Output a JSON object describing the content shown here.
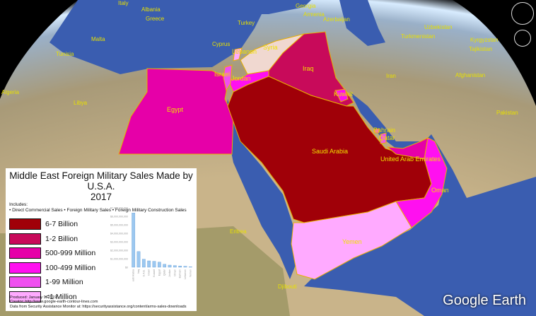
{
  "legend": {
    "title_line1": "Middle East Foreign Military Sales Made by U.S.A.",
    "title_line2": "2017",
    "includes_label": "Includes:",
    "includes_items": "• Direct Commercial Sales • Foreign Military Sales • Foreign Military Construction Sales",
    "classes": [
      {
        "label": "6-7 Billion",
        "color": "#a00008"
      },
      {
        "label": "1-2 Billion",
        "color": "#c80a5a"
      },
      {
        "label": "500-999 Million",
        "color": "#e600a8"
      },
      {
        "label": "100-499 Million",
        "color": "#ff10f0"
      },
      {
        "label": "1-99 Million",
        "color": "#f050f0"
      },
      {
        "label": "<1 Million",
        "color": "#ffaaff"
      }
    ],
    "produced": "Produced: January 9, 2019",
    "creator": "Creator: http://www.google-earth-contour-lines.com",
    "source": "Data from Security Assistance Monitor at: https://securityassistance.org/content/arms-sales-downloads"
  },
  "chart_data": {
    "type": "bar",
    "categories": [
      "Saudi Arabia",
      "Iraq",
      "U.A.E.",
      "Israel",
      "Kuwait",
      "Egypt",
      "Qatar",
      "Jordan",
      "Oman",
      "Bahrain",
      "Lebanon",
      "Yemen"
    ],
    "values": [
      6400000000,
      1850000000,
      950000000,
      750000000,
      700000000,
      600000000,
      350000000,
      250000000,
      200000000,
      150000000,
      120000000,
      50000000
    ],
    "ylim": [
      0,
      7000000000
    ],
    "yticks": [
      "$0",
      "$1,000,000,000",
      "$2,000,000,000",
      "$3,000,000,000",
      "$4,000,000,000",
      "$5,000,000,000",
      "$6,000,000,000",
      "$7,000,000,000"
    ],
    "bar_color": "#9cc8f0"
  },
  "map_labels": {
    "countries": [
      "Egypt",
      "Iraq",
      "Kuwait",
      "Saudi Arabia",
      "Bahrain",
      "Qatar",
      "United Arab Emirates",
      "Oman",
      "Yemen",
      "Israel",
      "Jordan",
      "Lebanon",
      "Syria"
    ],
    "places": [
      "Italy",
      "Albania",
      "Greece",
      "Turkey",
      "Malta",
      "Cyprus",
      "Tunisia",
      "Algeria",
      "Libya",
      "Georgia",
      "Armenia",
      "Azerbaijan",
      "Turkmenistan",
      "Uzbekistan",
      "Kyrgyzstan",
      "Tajikistan",
      "Iran",
      "Afghanistan",
      "Pakistan",
      "Eritrea",
      "Djibouti"
    ]
  },
  "branding": {
    "logo": "Google Earth"
  }
}
